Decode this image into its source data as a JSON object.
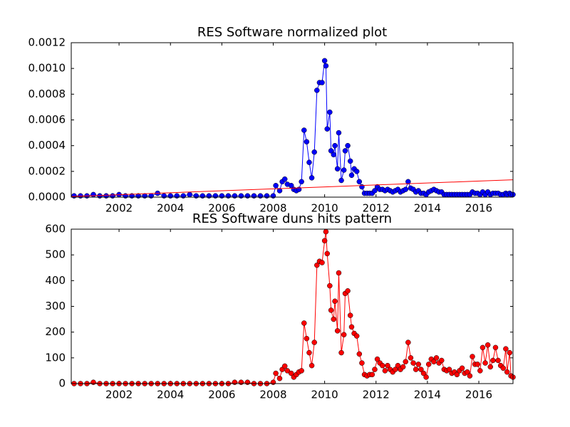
{
  "chart_data": [
    {
      "type": "line",
      "title": "RES Software normalized plot",
      "xlim": [
        2000.14,
        2017.33
      ],
      "xticks": [
        2002,
        2004,
        2006,
        2008,
        2010,
        2012,
        2014,
        2016
      ],
      "ylim": [
        0,
        0.0012
      ],
      "yticks": [
        {
          "value": 0,
          "label": "0.0000"
        },
        0.0002,
        0.0004,
        0.0006,
        0.0008,
        {
          "value": 0.001,
          "label": "0.0010"
        },
        0.0012
      ],
      "series": [
        {
          "color": "#0000ff",
          "marker": true,
          "x": [
            2000.25,
            2000.5,
            2000.75,
            2001,
            2001.25,
            2001.5,
            2001.75,
            2002,
            2002.25,
            2002.5,
            2002.75,
            2003,
            2003.25,
            2003.5,
            2003.75,
            2004,
            2004.25,
            2004.5,
            2004.75,
            2005,
            2005.25,
            2005.5,
            2005.75,
            2006,
            2006.25,
            2006.5,
            2006.75,
            2007,
            2007.25,
            2007.5,
            2007.75,
            2008.0,
            2008.1,
            2008.25,
            2008.35,
            2008.45,
            2008.55,
            2008.7,
            2008.8,
            2008.9,
            2009.0,
            2009.1,
            2009.2,
            2009.3,
            2009.4,
            2009.5,
            2009.6,
            2009.7,
            2009.8,
            2009.9,
            2010.0,
            2010.05,
            2010.1,
            2010.2,
            2010.25,
            2010.35,
            2010.4,
            2010.5,
            2010.55,
            2010.65,
            2010.75,
            2010.8,
            2010.9,
            2011.0,
            2011.05,
            2011.15,
            2011.25,
            2011.35,
            2011.45,
            2011.55,
            2011.65,
            2011.75,
            2011.85,
            2011.95,
            2012.05,
            2012.15,
            2012.25,
            2012.35,
            2012.45,
            2012.55,
            2012.65,
            2012.75,
            2012.85,
            2012.95,
            2013.05,
            2013.15,
            2013.25,
            2013.35,
            2013.45,
            2013.55,
            2013.65,
            2013.75,
            2013.85,
            2013.95,
            2014.05,
            2014.15,
            2014.25,
            2014.35,
            2014.45,
            2014.55,
            2014.65,
            2014.75,
            2014.85,
            2014.95,
            2015.05,
            2015.15,
            2015.25,
            2015.35,
            2015.45,
            2015.55,
            2015.65,
            2015.75,
            2015.85,
            2015.95,
            2016.05,
            2016.15,
            2016.25,
            2016.35,
            2016.45,
            2016.55,
            2016.65,
            2016.75,
            2016.85,
            2016.95,
            2017.05,
            2017.1,
            2017.2,
            2017.25,
            2017.33
          ],
          "values": [
            1e-05,
            1e-05,
            1e-05,
            2e-05,
            1e-05,
            1e-05,
            1e-05,
            2e-05,
            1e-05,
            1e-05,
            1e-05,
            1e-05,
            1e-05,
            3e-05,
            1e-05,
            1e-05,
            1e-05,
            1e-05,
            2e-05,
            1e-05,
            1e-05,
            1e-05,
            1e-05,
            1e-05,
            1e-05,
            1e-05,
            1e-05,
            1e-05,
            1e-05,
            1e-05,
            1e-05,
            1e-05,
            9e-05,
            5e-05,
            0.00012,
            0.00014,
            0.0001,
            9e-05,
            6e-05,
            5e-05,
            6e-05,
            0.00012,
            0.00052,
            0.00043,
            0.00027,
            0.00015,
            0.00035,
            0.00083,
            0.00089,
            0.00089,
            0.00106,
            0.00102,
            0.00053,
            0.00066,
            0.00036,
            0.00033,
            0.0004,
            0.00022,
            0.0005,
            0.00013,
            0.00021,
            0.00036,
            0.0004,
            0.00028,
            0.00017,
            0.00022,
            0.0002,
            0.00012,
            8e-05,
            3e-05,
            3e-05,
            3e-05,
            3e-05,
            5e-05,
            8e-05,
            6e-05,
            6e-05,
            5e-05,
            6e-05,
            5e-05,
            4e-05,
            5e-05,
            6e-05,
            4e-05,
            5e-05,
            6e-05,
            0.00012,
            7e-05,
            6e-05,
            4e-05,
            5e-05,
            3e-05,
            3e-05,
            2e-05,
            4e-05,
            5e-05,
            6e-05,
            5e-05,
            4e-05,
            4e-05,
            2e-05,
            2e-05,
            2e-05,
            2e-05,
            2e-05,
            2e-05,
            2e-05,
            2e-05,
            2e-05,
            2e-05,
            2e-05,
            4e-05,
            3e-05,
            3e-05,
            2e-05,
            4e-05,
            2e-05,
            4e-05,
            2e-05,
            3e-05,
            3e-05,
            3e-05,
            2e-05,
            2e-05,
            3e-05,
            2e-05,
            3e-05,
            2e-05,
            2e-05
          ]
        },
        {
          "color": "#ff0000",
          "marker": false,
          "x": [
            2000.14,
            2017.33
          ],
          "values": [
            5e-06,
            0.000135
          ]
        }
      ]
    },
    {
      "type": "line",
      "title": "RES Software duns hits pattern",
      "xlim": [
        2000.14,
        2017.33
      ],
      "xticks": [
        2002,
        2004,
        2006,
        2008,
        2010,
        2012,
        2014,
        2016
      ],
      "ylim": [
        0,
        600
      ],
      "yticks": [
        0,
        100,
        200,
        300,
        400,
        500,
        600
      ],
      "series": [
        {
          "color": "#ff0000",
          "marker": true,
          "x": [
            2000.25,
            2000.5,
            2000.75,
            2001,
            2001.25,
            2001.5,
            2001.75,
            2002,
            2002.25,
            2002.5,
            2002.75,
            2003,
            2003.25,
            2003.5,
            2003.75,
            2004,
            2004.25,
            2004.5,
            2004.75,
            2005,
            2005.25,
            2005.5,
            2005.75,
            2006,
            2006.25,
            2006.5,
            2006.75,
            2007,
            2007.25,
            2007.5,
            2007.75,
            2008.0,
            2008.1,
            2008.25,
            2008.35,
            2008.45,
            2008.55,
            2008.7,
            2008.8,
            2008.9,
            2009.0,
            2009.1,
            2009.2,
            2009.3,
            2009.4,
            2009.5,
            2009.6,
            2009.7,
            2009.8,
            2009.9,
            2010.0,
            2010.05,
            2010.1,
            2010.2,
            2010.25,
            2010.35,
            2010.4,
            2010.5,
            2010.55,
            2010.65,
            2010.75,
            2010.8,
            2010.9,
            2011.0,
            2011.05,
            2011.15,
            2011.25,
            2011.35,
            2011.45,
            2011.55,
            2011.65,
            2011.75,
            2011.85,
            2011.95,
            2012.05,
            2012.15,
            2012.25,
            2012.35,
            2012.45,
            2012.55,
            2012.65,
            2012.75,
            2012.85,
            2012.95,
            2013.05,
            2013.15,
            2013.25,
            2013.35,
            2013.45,
            2013.55,
            2013.65,
            2013.75,
            2013.85,
            2013.95,
            2014.05,
            2014.15,
            2014.25,
            2014.35,
            2014.45,
            2014.55,
            2014.65,
            2014.75,
            2014.85,
            2014.95,
            2015.05,
            2015.15,
            2015.25,
            2015.35,
            2015.45,
            2015.55,
            2015.65,
            2015.75,
            2015.85,
            2015.95,
            2016.05,
            2016.15,
            2016.25,
            2016.35,
            2016.45,
            2016.55,
            2016.65,
            2016.75,
            2016.85,
            2016.95,
            2017.05,
            2017.1,
            2017.2,
            2017.25,
            2017.33
          ],
          "values": [
            0,
            0,
            0,
            5,
            0,
            0,
            0,
            0,
            0,
            0,
            0,
            0,
            0,
            0,
            0,
            0,
            0,
            0,
            0,
            0,
            0,
            0,
            0,
            0,
            0,
            5,
            5,
            5,
            0,
            0,
            0,
            5,
            40,
            20,
            55,
            68,
            50,
            40,
            25,
            35,
            45,
            50,
            235,
            175,
            120,
            70,
            160,
            460,
            475,
            470,
            555,
            590,
            505,
            380,
            285,
            250,
            320,
            205,
            430,
            120,
            190,
            350,
            360,
            265,
            220,
            195,
            185,
            115,
            80,
            35,
            30,
            35,
            35,
            55,
            95,
            80,
            70,
            50,
            70,
            55,
            45,
            55,
            70,
            55,
            65,
            85,
            160,
            100,
            80,
            55,
            75,
            55,
            40,
            25,
            75,
            95,
            85,
            100,
            80,
            90,
            55,
            50,
            55,
            40,
            45,
            35,
            50,
            60,
            40,
            45,
            30,
            105,
            75,
            75,
            50,
            140,
            80,
            150,
            65,
            90,
            140,
            90,
            70,
            60,
            135,
            45,
            120,
            30,
            25
          ]
        }
      ]
    }
  ]
}
